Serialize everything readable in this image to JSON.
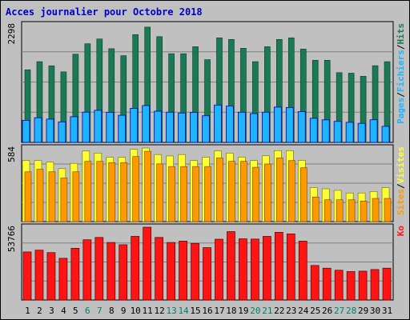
{
  "chart_data": {
    "type": "bar",
    "title": "Acces journalier pour Octobre 2018",
    "colors": {
      "background": "#c0c0c0",
      "grid": "#808080",
      "hits": "#1a7a55",
      "pages": "#1eb4ff",
      "pages_edge": "#0000aa",
      "visits": "#ffff33",
      "sites": "#ff9900",
      "bandwidth": "#ff1414",
      "day_normal": "#000000",
      "day_weekend": "#00806b"
    },
    "categories": [
      "1",
      "2",
      "3",
      "4",
      "5",
      "6",
      "7",
      "8",
      "9",
      "10",
      "11",
      "12",
      "13",
      "14",
      "15",
      "16",
      "17",
      "18",
      "19",
      "20",
      "21",
      "22",
      "23",
      "24",
      "25",
      "26",
      "27",
      "28",
      "29",
      "30",
      "31"
    ],
    "weekend_days": [
      "6",
      "7",
      "13",
      "14",
      "20",
      "21",
      "27",
      "28"
    ],
    "panels": [
      {
        "axis_max_label": "2298",
        "ymax": 2298,
        "legend": [
          {
            "text": "Pages",
            "color": "#1eb4ff"
          },
          {
            "text": "/",
            "color": "#000000"
          },
          {
            "text": "Fichiers",
            "color": "#1eb4ff"
          },
          {
            "text": "/",
            "color": "#000000"
          },
          {
            "text": "Hits",
            "color": "#1a7a55"
          }
        ],
        "series": [
          {
            "key": "hits",
            "values": [
              1419,
              1578,
              1497,
              1378,
              1723,
              1928,
              2021,
              1831,
              1695,
              2107,
              2253,
              2067,
              1733,
              1733,
              1870,
              1617,
              2043,
              2012,
              1839,
              1578,
              1870,
              2012,
              2043,
              1824,
              1605,
              1605,
              1363,
              1353,
              1292,
              1499,
              1577
            ]
          },
          {
            "key": "pages",
            "values": [
              432,
              482,
              455,
              401,
              502,
              591,
              627,
              586,
              530,
              666,
              720,
              610,
              590,
              575,
              585,
              520,
              730,
              710,
              590,
              564,
              590,
              690,
              682,
              600,
              471,
              441,
              411,
              392,
              372,
              442,
              314
            ]
          }
        ]
      },
      {
        "axis_max_label": "584",
        "ymax": 584,
        "legend": [
          {
            "text": "Sites",
            "color": "#ff9900"
          },
          {
            "text": "/",
            "color": "#000000"
          },
          {
            "text": "Visites",
            "color": "#ffff33"
          }
        ],
        "series": [
          {
            "key": "visits",
            "values": [
              484,
              484,
              473,
              420,
              462,
              560,
              544,
              511,
              511,
              573,
              584,
              532,
              521,
              532,
              484,
              511,
              560,
              544,
              512,
              484,
              522,
              563,
              563,
              486,
              270,
              260,
              248,
              227,
              227,
              239,
              270
            ]
          },
          {
            "key": "sites",
            "values": [
              395,
              416,
              395,
              346,
              395,
              478,
              478,
              468,
              468,
              516,
              558,
              458,
              437,
              437,
              437,
              437,
              505,
              478,
              478,
              431,
              457,
              505,
              484,
              427,
              195,
              173,
              173,
              173,
              163,
              184,
              184
            ]
          }
        ]
      },
      {
        "axis_max_label": "53766",
        "ymax": 53766,
        "legend": [
          {
            "text": "Ko",
            "color": "#ff1414"
          }
        ],
        "series": [
          {
            "key": "bandwidth",
            "values": [
              35500,
              36800,
              35000,
              30800,
              38200,
              44500,
              46200,
              42500,
              40800,
              47000,
              53766,
              46200,
              42500,
              43500,
              41800,
              38700,
              44900,
              50500,
              45200,
              45000,
              47000,
              50000,
              48800,
              43500,
              25500,
              23500,
              22000,
              21000,
              21300,
              22500,
              23500
            ]
          }
        ]
      }
    ]
  }
}
